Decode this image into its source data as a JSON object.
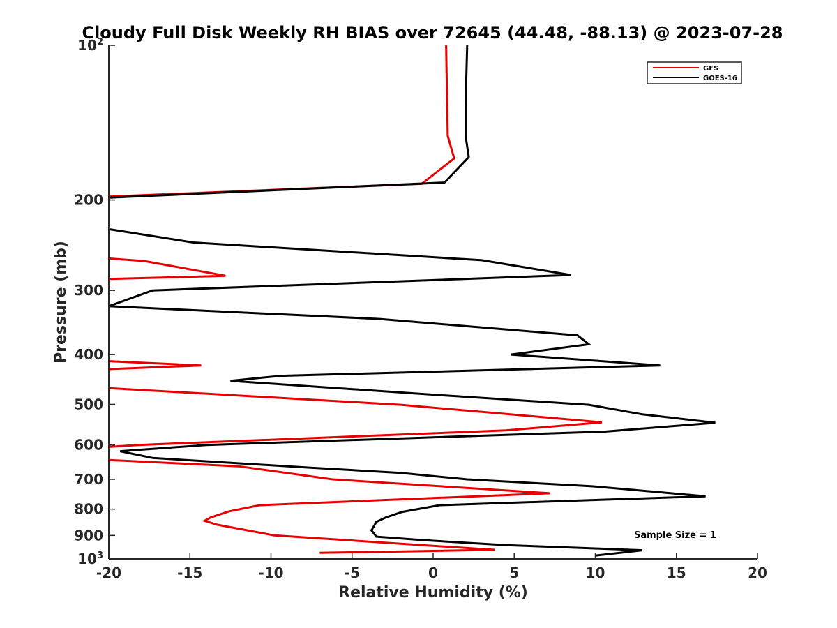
{
  "chart_data": {
    "type": "line",
    "title": "Cloudy Full Disk Weekly RH BIAS over 72645 (44.48, -88.13) @ 2023-07-28",
    "xlabel": "Relative Humidity (%)",
    "ylabel": "Pressure (mb)",
    "xlim": [
      -20,
      20
    ],
    "ylim": [
      100,
      1000
    ],
    "y_scale": "log",
    "y_reversed": true,
    "x_ticks": [
      -20,
      -15,
      -10,
      -5,
      0,
      5,
      10,
      15,
      20
    ],
    "x_tick_labels": [
      "-20",
      "-15",
      "-10",
      "-5",
      "0",
      "5",
      "10",
      "15",
      "20"
    ],
    "y_ticks": [
      {
        "value": 100,
        "base": "10",
        "exp": "2",
        "label": ""
      },
      {
        "value": 200,
        "base": "",
        "exp": "",
        "label": "200"
      },
      {
        "value": 300,
        "base": "",
        "exp": "",
        "label": "300"
      },
      {
        "value": 400,
        "base": "",
        "exp": "",
        "label": "400"
      },
      {
        "value": 500,
        "base": "",
        "exp": "",
        "label": "500"
      },
      {
        "value": 600,
        "base": "",
        "exp": "",
        "label": "600"
      },
      {
        "value": 700,
        "base": "",
        "exp": "",
        "label": "700"
      },
      {
        "value": 800,
        "base": "",
        "exp": "",
        "label": "800"
      },
      {
        "value": 900,
        "base": "",
        "exp": "",
        "label": "900"
      },
      {
        "value": 1000,
        "base": "10",
        "exp": "3",
        "label": ""
      }
    ],
    "grid": false,
    "legend_position": "top-right",
    "annotation": "Sample Size = 1",
    "series": [
      {
        "name": "GFS",
        "color": "#e60000",
        "points": [
          {
            "x": 0.8,
            "y": 100
          },
          {
            "x": 0.9,
            "y": 150
          },
          {
            "x": 1.3,
            "y": 166
          },
          {
            "x": -0.7,
            "y": 186
          },
          {
            "x": -20,
            "y": 197
          }
        ]
      },
      {
        "name": "GFS",
        "color": "#e60000",
        "points": [
          {
            "x": -20,
            "y": 260
          },
          {
            "x": -17.8,
            "y": 263
          },
          {
            "x": -12.8,
            "y": 281
          },
          {
            "x": -20,
            "y": 285
          }
        ]
      },
      {
        "name": "GFS",
        "color": "#e60000",
        "points": [
          {
            "x": -20,
            "y": 412
          },
          {
            "x": -14.3,
            "y": 420
          },
          {
            "x": -20,
            "y": 427
          }
        ]
      },
      {
        "name": "GFS",
        "color": "#e60000",
        "points": [
          {
            "x": -20,
            "y": 465
          },
          {
            "x": -2,
            "y": 501
          },
          {
            "x": 10.4,
            "y": 542
          },
          {
            "x": 4.5,
            "y": 562
          },
          {
            "x": -18.2,
            "y": 600
          },
          {
            "x": -20,
            "y": 605
          }
        ]
      },
      {
        "name": "GFS",
        "color": "#e60000",
        "points": [
          {
            "x": -20,
            "y": 642
          },
          {
            "x": -12,
            "y": 660
          },
          {
            "x": -6.2,
            "y": 700
          },
          {
            "x": 7.2,
            "y": 745
          },
          {
            "x": -10.7,
            "y": 786
          },
          {
            "x": -12.6,
            "y": 808
          },
          {
            "x": -13.7,
            "y": 830
          },
          {
            "x": -14.1,
            "y": 843
          },
          {
            "x": -13.3,
            "y": 858
          },
          {
            "x": -9.8,
            "y": 900
          },
          {
            "x": 3.8,
            "y": 960
          },
          {
            "x": -7,
            "y": 973
          }
        ]
      },
      {
        "name": "GOES-16",
        "color": "#000000",
        "points": [
          {
            "x": 2.1,
            "y": 100
          },
          {
            "x": 2,
            "y": 130
          },
          {
            "x": 2,
            "y": 150
          },
          {
            "x": 2.2,
            "y": 165
          },
          {
            "x": 0.7,
            "y": 185
          },
          {
            "x": -20,
            "y": 198
          }
        ]
      },
      {
        "name": "GOES-16",
        "color": "#000000",
        "points": [
          {
            "x": -20,
            "y": 228
          },
          {
            "x": -14.8,
            "y": 242
          },
          {
            "x": 3,
            "y": 262
          },
          {
            "x": 8.5,
            "y": 280
          },
          {
            "x": -17.3,
            "y": 300
          },
          {
            "x": -20,
            "y": 322
          },
          {
            "x": -3.3,
            "y": 341
          },
          {
            "x": 8.9,
            "y": 367
          },
          {
            "x": 9.6,
            "y": 382
          },
          {
            "x": 4.8,
            "y": 400
          },
          {
            "x": 14,
            "y": 420
          },
          {
            "x": -9.4,
            "y": 440
          },
          {
            "x": -12.5,
            "y": 450
          },
          {
            "x": 0.5,
            "y": 480
          },
          {
            "x": 9.6,
            "y": 501
          },
          {
            "x": 12.9,
            "y": 523
          },
          {
            "x": 17.4,
            "y": 543
          },
          {
            "x": 10.6,
            "y": 565
          },
          {
            "x": -14,
            "y": 600
          },
          {
            "x": -19.3,
            "y": 617
          },
          {
            "x": -17.3,
            "y": 636
          },
          {
            "x": -8,
            "y": 663
          },
          {
            "x": -2,
            "y": 680
          },
          {
            "x": 2.1,
            "y": 700
          },
          {
            "x": 9.8,
            "y": 722
          },
          {
            "x": 16.8,
            "y": 755
          },
          {
            "x": 0.4,
            "y": 786
          },
          {
            "x": -1.9,
            "y": 810
          },
          {
            "x": -2.9,
            "y": 830
          },
          {
            "x": -3.5,
            "y": 847
          },
          {
            "x": -3.8,
            "y": 880
          },
          {
            "x": -3.5,
            "y": 905
          },
          {
            "x": -0.5,
            "y": 920
          },
          {
            "x": 4.5,
            "y": 940
          },
          {
            "x": 12.9,
            "y": 962
          },
          {
            "x": 10,
            "y": 985
          }
        ]
      }
    ]
  },
  "legend": [
    {
      "label": "GFS",
      "color": "#e60000"
    },
    {
      "label": "GOES-16",
      "color": "#000000"
    }
  ]
}
